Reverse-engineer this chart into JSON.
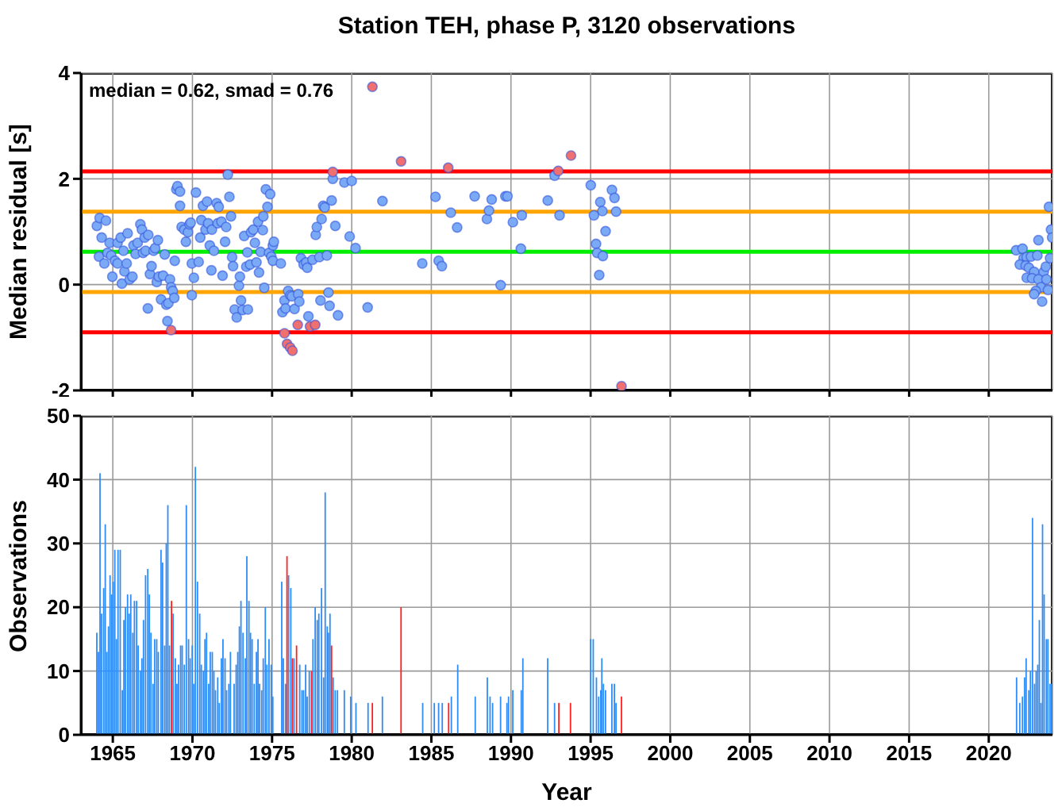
{
  "chart_data": [
    {
      "type": "scatter",
      "title": "Station TEH, phase P, 3120 observations",
      "ylabel": "Median residual [s]",
      "xlim": [
        1963,
        2024
      ],
      "xticks": [
        1965,
        1970,
        1975,
        1980,
        1985,
        1990,
        1995,
        2000,
        2005,
        2010,
        2015,
        2020
      ],
      "ylim": [
        -2,
        4
      ],
      "yticks": [
        -2,
        0,
        2,
        4
      ],
      "tick_labels": "y",
      "grid": true,
      "marker": "circle",
      "annotations": [
        "median = 0.62, smad = 0.76"
      ],
      "ref_lines": [
        {
          "axis": "y",
          "value": 2.14,
          "color": "#ff0000"
        },
        {
          "axis": "y",
          "value": 1.38,
          "color": "#ffa500"
        },
        {
          "axis": "y",
          "value": 0.62,
          "color": "#00ee00"
        },
        {
          "axis": "y",
          "value": -0.14,
          "color": "#ffa500"
        },
        {
          "axis": "y",
          "value": -0.9,
          "color": "#ff0000"
        }
      ],
      "series": [
        {
          "color": "#7aaaf5",
          "x": [
            1964.0,
            1964.17,
            1964.57,
            1964.3,
            1964.13,
            1964.47,
            1964.67,
            1964.8,
            1964.9,
            1964.97,
            1965.13,
            1965.3,
            1965.3,
            1965.5,
            1965.57,
            1965.67,
            1965.73,
            1965.87,
            1965.93,
            1966.06,
            1966.23,
            1966.3,
            1966.43,
            1966.56,
            1966.73,
            1966.83,
            1966.9,
            1967.0,
            1967.06,
            1967.23,
            1967.2,
            1967.33,
            1967.43,
            1967.56,
            1967.66,
            1967.76,
            1967.83,
            1967.89,
            1968.03,
            1968.16,
            1968.26,
            1968.36,
            1968.43,
            1968.49,
            1968.59,
            1968.66,
            1968.76,
            1968.86,
            1968.89,
            1968.99,
            1969.06,
            1969.22,
            1969.22,
            1969.32,
            1969.49,
            1969.59,
            1969.72,
            1969.82,
            1969.89,
            1969.96,
            1969.96,
            1970.09,
            1970.22,
            1970.39,
            1970.49,
            1970.56,
            1970.66,
            1970.82,
            1970.92,
            1970.99,
            1971.09,
            1971.19,
            1971.22,
            1971.35,
            1971.52,
            1971.59,
            1971.65,
            1971.82,
            1971.89,
            1972.05,
            1972.12,
            1972.22,
            1972.32,
            1972.42,
            1972.49,
            1972.55,
            1972.65,
            1972.78,
            1972.92,
            1972.98,
            1973.05,
            1973.15,
            1973.25,
            1973.38,
            1973.45,
            1973.48,
            1973.62,
            1973.68,
            1973.82,
            1973.92,
            1974.02,
            1974.12,
            1974.18,
            1974.28,
            1974.42,
            1974.45,
            1974.51,
            1974.61,
            1974.71,
            1974.88,
            1974.81,
            1974.95,
            1975.05,
            1975.05,
            1975.11,
            1975.55,
            1975.65,
            1975.78,
            1975.85,
            1976.01,
            1976.14,
            1976.24,
            1976.41,
            1976.64,
            1976.71,
            1976.81,
            1976.98,
            1977.14,
            1977.21,
            1977.28,
            1977.54,
            1977.74,
            1977.81,
            1977.97,
            1978.04,
            1978.11,
            1978.21,
            1978.31,
            1978.44,
            1978.54,
            1978.61,
            1978.74,
            1978.81,
            1978.97,
            1979.14,
            1979.54,
            1979.87,
            1980.0,
            1980.24,
            1981.0,
            1981.93,
            1984.43,
            1985.26,
            1985.46,
            1985.66,
            1986.22,
            1986.62,
            1987.72,
            1988.49,
            1988.62,
            1988.79,
            1989.35,
            1989.65,
            1989.78,
            1990.12,
            1990.68,
            1990.62,
            1992.74,
            1992.31,
            1993.05,
            1995.01,
            1995.61,
            1996.34,
            1996.5,
            1995.74,
            1995.21,
            1996.6,
            1995.94,
            1995.34,
            1995.41,
            1995.77,
            1995.54,
            2021.72,
            2022.12,
            2023.12,
            2022.19,
            2022.38,
            2022.65,
            2023.05,
            2021.95,
            2022.32,
            2022.52,
            2022.85,
            2023.45,
            2023.58,
            2023.85,
            2023.91,
            2023.98,
            2023.78,
            2022.38,
            2022.72,
            2023.12,
            2023.62,
            2023.28,
            2023.72,
            2022.95,
            2022.85,
            2023.35
          ],
          "values": [
            1.11,
            1.26,
            1.21,
            0.89,
            0.53,
            0.4,
            0.6,
            0.79,
            0.55,
            0.15,
            0.45,
            0.79,
            0.4,
            0.89,
            0.02,
            0.64,
            0.25,
            0.4,
            0.97,
            0.1,
            0.15,
            0.74,
            0.58,
            0.79,
            1.14,
            1.04,
            0.6,
            0.89,
            0.64,
            0.94,
            -0.45,
            0.2,
            0.35,
            0.64,
            0.69,
            0.05,
            0.84,
            0.15,
            -0.28,
            0.17,
            0.57,
            -0.38,
            -0.69,
            -0.35,
            0.1,
            -0.05,
            -0.12,
            -0.25,
            0.45,
            1.8,
            1.86,
            1.76,
            1.49,
            1.09,
            1.04,
            0.81,
            0.99,
            1.14,
            1.17,
            0.4,
            -0.2,
            0.13,
            1.74,
            0.43,
            0.89,
            1.22,
            1.49,
            1.04,
            1.57,
            1.16,
            0.74,
            0.27,
            1.04,
            0.64,
            1.54,
            1.16,
            1.47,
            1.19,
            0.17,
            0.81,
            1.09,
            2.08,
            1.66,
            1.29,
            0.52,
            0.35,
            -0.47,
            -0.62,
            -0.02,
            0.15,
            -0.3,
            -0.48,
            0.92,
            0.34,
            0.61,
            -0.47,
            0.38,
            0.99,
            1.04,
            0.79,
            0.42,
            1.19,
            0.23,
            0.62,
            1.03,
            1.29,
            -0.06,
            1.8,
            1.47,
            1.71,
            0.6,
            0.53,
            0.45,
            0.74,
            0.81,
            0.4,
            -0.52,
            -0.3,
            -0.45,
            -0.12,
            -0.2,
            -0.22,
            -0.46,
            -0.18,
            -0.32,
            0.5,
            0.38,
            0.42,
            0.32,
            -0.6,
            0.47,
            0.94,
            1.09,
            0.52,
            -0.3,
            1.24,
            1.49,
            1.46,
            0.55,
            -0.15,
            -0.4,
            1.59,
            2.0,
            1.11,
            -0.58,
            1.93,
            0.91,
            1.96,
            0.69,
            -0.43,
            1.58,
            0.4,
            1.66,
            0.45,
            0.35,
            1.36,
            1.08,
            1.67,
            1.24,
            1.4,
            1.61,
            -0.01,
            1.67,
            1.67,
            1.18,
            1.31,
            0.68,
            2.06,
            1.59,
            1.31,
            1.88,
            1.56,
            1.79,
            1.64,
            1.39,
            1.31,
            1.38,
            1.01,
            0.77,
            0.6,
            0.54,
            0.18,
            0.65,
            0.68,
            0.84,
            0.5,
            0.52,
            0.53,
            0.55,
            0.38,
            0.36,
            0.32,
            0.24,
            0.24,
            0.34,
            0.5,
            1.04,
            0.89,
            1.47,
            0.13,
            0.12,
            0.1,
            0.1,
            -0.05,
            -0.1,
            -0.12,
            -0.18,
            -0.32
          ]
        },
        {
          "color": "#f07070",
          "x": [
            1981.3,
            1983.1,
            1986.06,
            1978.81,
            1968.66,
            1975.78,
            1975.94,
            1976.14,
            1976.28,
            1976.61,
            1977.38,
            1977.71,
            1993.77,
            1992.97,
            1996.94
          ],
          "values": [
            3.74,
            2.33,
            2.21,
            2.13,
            -0.86,
            -0.92,
            -1.12,
            -1.19,
            -1.25,
            -0.76,
            -0.79,
            -0.76,
            2.44,
            2.15,
            -1.92
          ]
        }
      ]
    },
    {
      "type": "bar",
      "xlabel": "Year",
      "ylabel": "Observations",
      "xlim": [
        1963,
        2024
      ],
      "xticks": [
        1965,
        1970,
        1975,
        1980,
        1985,
        1990,
        1995,
        2000,
        2005,
        2010,
        2015,
        2020
      ],
      "ylim": [
        0,
        50
      ],
      "yticks": [
        0,
        10,
        20,
        30,
        40,
        50
      ],
      "grid": true,
      "series": [
        {
          "color": "#2f8cf5",
          "x": [
            1964.0,
            1964.1,
            1964.2,
            1964.3,
            1964.43,
            1964.53,
            1964.63,
            1964.73,
            1964.83,
            1964.93,
            1965.03,
            1965.13,
            1965.23,
            1965.33,
            1965.47,
            1965.6,
            1965.7,
            1965.8,
            1965.93,
            1966.03,
            1966.13,
            1966.26,
            1966.36,
            1966.5,
            1966.6,
            1966.73,
            1966.83,
            1966.93,
            1967.06,
            1967.2,
            1967.3,
            1967.4,
            1967.53,
            1967.63,
            1967.76,
            1967.86,
            1968.03,
            1968.13,
            1968.26,
            1968.36,
            1968.46,
            1968.56,
            1968.79,
            1968.93,
            1969.03,
            1969.13,
            1969.26,
            1969.36,
            1969.49,
            1969.62,
            1969.76,
            1969.86,
            1969.99,
            1970.09,
            1970.19,
            1970.32,
            1970.46,
            1970.56,
            1970.69,
            1970.79,
            1970.89,
            1971.02,
            1971.12,
            1971.25,
            1971.35,
            1971.45,
            1971.59,
            1971.69,
            1971.82,
            1971.92,
            1972.05,
            1972.15,
            1972.29,
            1972.39,
            1972.62,
            1972.75,
            1972.85,
            1972.95,
            1973.05,
            1973.18,
            1973.32,
            1973.42,
            1973.55,
            1973.65,
            1973.75,
            1973.88,
            1974.02,
            1974.12,
            1974.22,
            1974.35,
            1974.45,
            1974.58,
            1974.68,
            1974.81,
            1974.95,
            1975.05,
            1975.61,
            1975.71,
            1975.85,
            1976.04,
            1976.18,
            1976.38,
            1976.74,
            1976.88,
            1976.98,
            1977.11,
            1977.21,
            1977.34,
            1977.57,
            1977.71,
            1977.84,
            1977.94,
            1978.11,
            1978.24,
            1978.34,
            1978.47,
            1978.54,
            1978.64,
            1978.84,
            1978.97,
            1979.11,
            1979.54,
            1979.94,
            1980.27,
            1981.03,
            1981.93,
            1984.46,
            1985.19,
            1985.46,
            1985.69,
            1986.26,
            1986.66,
            1987.76,
            1988.52,
            1988.69,
            1988.85,
            1989.35,
            1989.75,
            1989.85,
            1990.12,
            1990.65,
            1990.75,
            1992.31,
            1992.74,
            1995.01,
            1995.17,
            1995.37,
            1995.51,
            1995.64,
            1995.71,
            1995.81,
            1995.94,
            1996.34,
            1996.5,
            1996.6,
            2021.75,
            2021.95,
            2022.12,
            2022.25,
            2022.35,
            2022.52,
            2022.62,
            2022.75,
            2022.88,
            2022.98,
            2023.08,
            2023.18,
            2023.28,
            2023.38,
            2023.48,
            2023.62,
            2023.72,
            2023.85,
            2023.95
          ],
          "values": [
            16,
            13,
            41,
            19,
            23,
            33,
            13,
            17,
            25,
            22,
            24,
            29,
            15,
            29,
            29,
            7,
            18,
            20,
            22,
            19,
            22,
            16,
            21,
            21,
            14,
            10,
            12,
            18,
            25,
            26,
            22,
            16,
            8,
            15,
            15,
            13,
            29,
            27,
            14,
            30,
            36,
            14,
            19,
            12,
            8,
            11,
            14,
            14,
            11,
            36,
            15,
            12,
            14,
            8,
            42,
            24,
            19,
            11,
            10,
            15,
            16,
            8,
            13,
            13,
            10,
            7,
            9,
            5,
            12,
            15,
            12,
            7,
            8,
            13,
            8,
            11,
            13,
            17,
            21,
            16,
            12,
            28,
            21,
            16,
            15,
            8,
            13,
            15,
            8,
            7,
            12,
            20,
            11,
            15,
            11,
            6,
            24,
            12,
            8,
            25,
            23,
            12,
            11,
            7,
            7,
            11,
            6,
            10,
            15,
            20,
            18,
            19,
            23,
            9,
            38,
            17,
            16,
            19,
            9,
            7,
            7,
            7,
            6,
            5,
            5,
            6,
            5,
            5,
            5,
            5,
            6,
            11,
            6,
            9,
            6,
            5,
            6,
            5,
            6,
            7,
            7,
            12,
            12,
            5,
            15,
            15,
            9,
            6,
            7,
            12,
            8,
            7,
            8,
            8,
            5,
            9,
            5,
            6,
            9,
            12,
            7,
            10,
            34,
            8,
            10,
            11,
            18,
            5,
            33,
            22,
            15,
            15,
            8,
            8
          ]
        },
        {
          "color": "#ff2020",
          "x": [
            1968.69,
            1975.94,
            1976.28,
            1976.54,
            1977.48,
            1978.74,
            1981.3,
            1983.1,
            1986.09,
            1993.01,
            1993.74,
            1996.94
          ],
          "values": [
            21,
            28,
            12,
            14,
            10,
            14,
            5,
            20,
            5,
            5,
            5,
            6
          ]
        }
      ]
    }
  ]
}
